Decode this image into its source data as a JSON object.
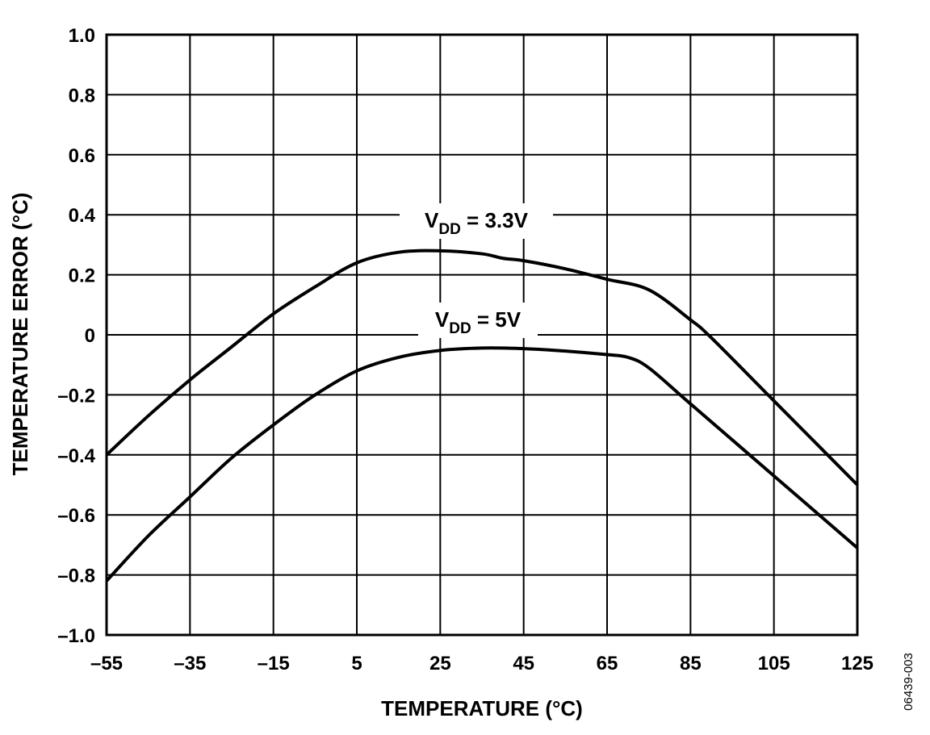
{
  "chart_data": {
    "type": "line",
    "title": "",
    "xlabel": "TEMPERATURE (°C)",
    "ylabel": "TEMPERATURE ERROR (°C)",
    "xlim": [
      -55,
      125
    ],
    "ylim": [
      -1.0,
      1.0
    ],
    "xticks": [
      -55,
      -35,
      -15,
      5,
      25,
      45,
      65,
      85,
      105,
      125
    ],
    "xtick_labels": [
      "–55",
      "–35",
      "–15",
      "5",
      "25",
      "45",
      "65",
      "85",
      "105",
      "125"
    ],
    "yticks": [
      1.0,
      0.8,
      0.6,
      0.4,
      0.2,
      0,
      -0.2,
      -0.4,
      -0.6,
      -0.8,
      -1.0
    ],
    "ytick_labels": [
      "1.0",
      "0.8",
      "0.6",
      "0.4",
      "0.2",
      "0",
      "–0.2",
      "–0.4",
      "–0.6",
      "–0.8",
      "–1.0"
    ],
    "grid": true,
    "series": [
      {
        "name": "VDD = 3.3V",
        "label_main": "V",
        "label_sub": "DD",
        "label_rest": " = 3.3V",
        "x": [
          -55,
          -45,
          -35,
          -25,
          -15,
          -5,
          5,
          15,
          25,
          35,
          40,
          45,
          55,
          65,
          75,
          85,
          90,
          105,
          125
        ],
        "y": [
          -0.4,
          -0.27,
          -0.15,
          -0.04,
          0.07,
          0.16,
          0.24,
          0.275,
          0.28,
          0.27,
          0.255,
          0.247,
          0.22,
          0.185,
          0.15,
          0.05,
          -0.01,
          -0.22,
          -0.5
        ]
      },
      {
        "name": "VDD = 5V",
        "label_main": "V",
        "label_sub": "DD",
        "label_rest": " = 5V",
        "x": [
          -55,
          -45,
          -35,
          -25,
          -15,
          -5,
          5,
          15,
          25,
          35,
          45,
          55,
          65,
          70,
          75,
          85,
          105,
          125
        ],
        "y": [
          -0.82,
          -0.67,
          -0.54,
          -0.41,
          -0.3,
          -0.2,
          -0.12,
          -0.075,
          -0.052,
          -0.044,
          -0.046,
          -0.054,
          -0.066,
          -0.075,
          -0.11,
          -0.23,
          -0.47,
          -0.71
        ]
      }
    ],
    "figure_id": "06439-003"
  }
}
